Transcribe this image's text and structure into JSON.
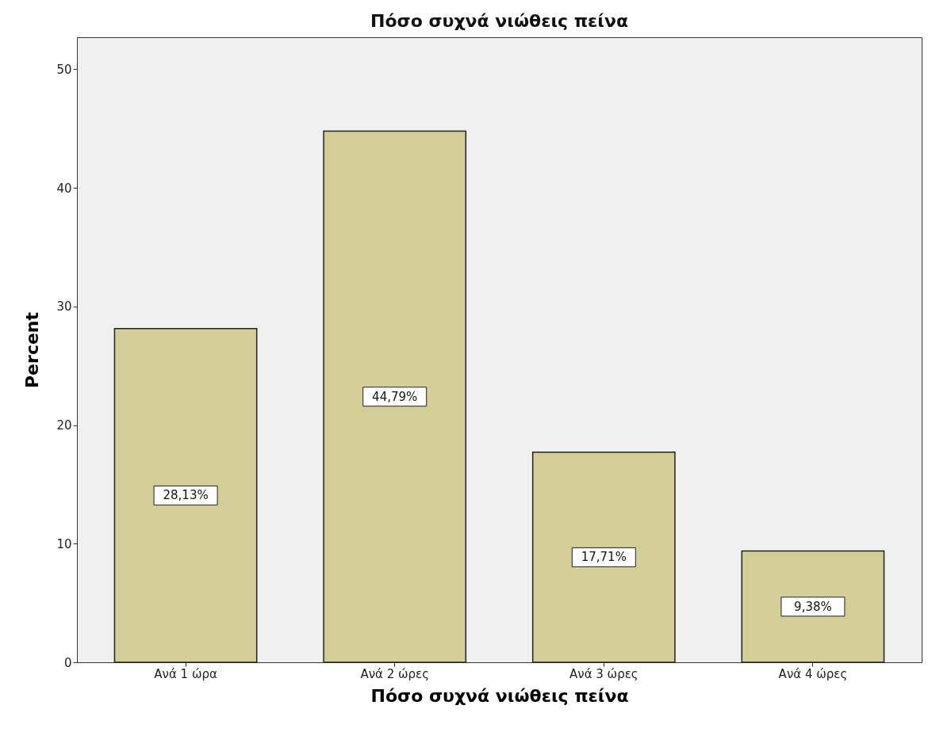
{
  "chart_data": {
    "type": "bar",
    "title": "Πόσο συχνά νιώθεις πείνα",
    "xlabel": "Πόσο συχνά νιώθεις πείνα",
    "ylabel": "Percent",
    "categories": [
      "Ανά 1 ώρα",
      "Ανά 2 ώρες",
      "Ανά 3 ώρες",
      "Ανά 4 ώρες"
    ],
    "values": [
      28.13,
      44.79,
      17.71,
      9.38
    ],
    "value_labels": [
      "28,13%",
      "44,79%",
      "17,71%",
      "9,38%"
    ],
    "color": "#d3ce98",
    "ylim": [
      0,
      52.7
    ],
    "yticks": [
      0,
      10,
      20,
      30,
      40,
      50
    ],
    "grid": false
  }
}
